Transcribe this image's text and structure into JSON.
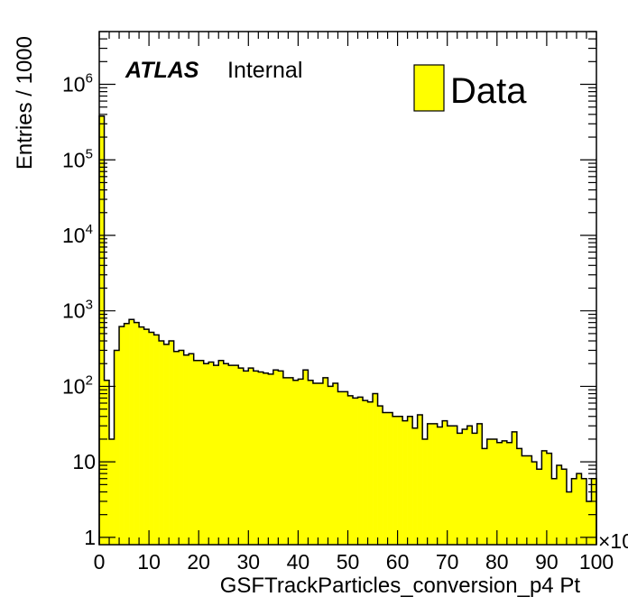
{
  "chart_data": {
    "type": "bar",
    "title": "",
    "xlabel": "GSFTrackParticles_conversion_p4 Pt",
    "ylabel": "Entries / 1000",
    "x_multiplier_label": "×10",
    "xlim": [
      0,
      100
    ],
    "ylim_log": [
      0.8,
      5000000
    ],
    "log_y": true,
    "x_ticks": [
      "0",
      "10",
      "20",
      "30",
      "40",
      "50",
      "60",
      "70",
      "80",
      "90",
      "100"
    ],
    "y_ticks": [
      {
        "base": "1",
        "exp": ""
      },
      {
        "base": "10",
        "exp": ""
      },
      {
        "base": "10",
        "exp": "2"
      },
      {
        "base": "10",
        "exp": "3"
      },
      {
        "base": "10",
        "exp": "4"
      },
      {
        "base": "10",
        "exp": "5"
      },
      {
        "base": "10",
        "exp": "6"
      }
    ],
    "fill_color": "#ffff00",
    "line_color": "#000000",
    "series": [
      {
        "name": "Data",
        "bin_width": 1,
        "values": [
          380000,
          120,
          20,
          300,
          620,
          680,
          770,
          700,
          610,
          570,
          520,
          480,
          400,
          360,
          400,
          290,
          300,
          260,
          270,
          220,
          220,
          200,
          210,
          190,
          220,
          200,
          190,
          190,
          175,
          160,
          175,
          160,
          155,
          150,
          145,
          165,
          160,
          130,
          130,
          120,
          125,
          165,
          120,
          110,
          110,
          130,
          100,
          110,
          85,
          85,
          75,
          70,
          72,
          65,
          62,
          80,
          55,
          45,
          45,
          40,
          40,
          35,
          40,
          28,
          42,
          20,
          32,
          32,
          29,
          35,
          30,
          30,
          24,
          27,
          30,
          24,
          32,
          15,
          20,
          20,
          18,
          19,
          18,
          25,
          15,
          12,
          12,
          10,
          8,
          14,
          13,
          6,
          9,
          8,
          4,
          6,
          7,
          6,
          3,
          6,
          9
        ]
      }
    ],
    "legend": {
      "entries": [
        "Data"
      ],
      "position": "top-right"
    }
  },
  "labels": {
    "atlas": "ATLAS",
    "internal": "Internal"
  }
}
